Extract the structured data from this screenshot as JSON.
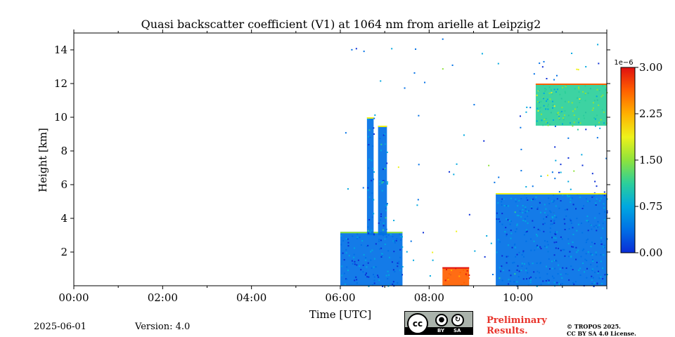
{
  "chart_data": {
    "type": "heatmap",
    "title": "Quasi backscatter coefficient (V1) at 1064 nm from arielle at Leipzig2",
    "xlabel": "Time [UTC]",
    "ylabel": "Height [km]",
    "xlim_hours": [
      0,
      12
    ],
    "ylim_km": [
      0,
      15
    ],
    "x_ticks": [
      0,
      2,
      4,
      6,
      8,
      10
    ],
    "x_tick_labels": [
      "00:00",
      "02:00",
      "04:00",
      "06:00",
      "08:00",
      "10:00"
    ],
    "y_ticks": [
      2,
      4,
      6,
      8,
      10,
      12,
      14
    ],
    "y_tick_labels": [
      "2",
      "4",
      "6",
      "8",
      "10",
      "12",
      "14"
    ],
    "colorbar": {
      "min": 0,
      "max": 3.0,
      "scale_label": "1e−6",
      "ticks": [
        0,
        0.75,
        1.5,
        2.25,
        3.0
      ],
      "tick_labels": [
        "0.00",
        "0.75",
        "1.50",
        "2.25",
        "3.00"
      ],
      "colormap": [
        "#0a2dd6",
        "#0070e6",
        "#00a8e0",
        "#2ccf9a",
        "#8ee33c",
        "#eef21a",
        "#ffb000",
        "#ff6000",
        "#e01010"
      ]
    },
    "regions": [
      {
        "name": "boundary-layer-morning",
        "t": [
          6.0,
          7.4
        ],
        "h": [
          0.0,
          3.2
        ],
        "value": 0.35
      },
      {
        "name": "lofted-layer-left",
        "t": [
          6.6,
          6.75
        ],
        "h": [
          3.0,
          10.0
        ],
        "value": 0.45
      },
      {
        "name": "lofted-layer-right",
        "t": [
          6.85,
          7.05
        ],
        "h": [
          3.0,
          9.5
        ],
        "value": 0.45
      },
      {
        "name": "aerosol-mid-day",
        "t": [
          8.3,
          8.9
        ],
        "h": [
          0.0,
          1.1
        ],
        "value": 2.7
      },
      {
        "name": "boundary-layer-afternoon",
        "t": [
          9.5,
          12.0
        ],
        "h": [
          0.0,
          5.5
        ],
        "value": 0.4
      },
      {
        "name": "cirrus-cloud",
        "t": [
          10.4,
          12.0
        ],
        "h": [
          9.5,
          12.0
        ],
        "value": 1.2
      }
    ]
  },
  "footer": {
    "date": "2025-06-01",
    "version": "Version: 4.0",
    "license_badge_text": "cc",
    "license_by": "BY",
    "license_sa": "SA",
    "preliminary_line1": "Preliminary",
    "preliminary_line2": "Results.",
    "copyright_line1": "© TROPOS 2025.",
    "copyright_line2": "CC BY SA 4.0 License."
  }
}
